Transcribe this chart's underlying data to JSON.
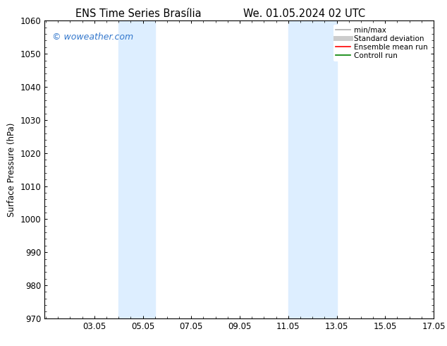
{
  "title_left": "ENS Time Series Brasília",
  "title_right": "We. 01.05.2024 02 UTC",
  "ylabel": "Surface Pressure (hPa)",
  "xlim": [
    1.0,
    17.05
  ],
  "ylim": [
    970,
    1060
  ],
  "yticks": [
    970,
    980,
    990,
    1000,
    1010,
    1020,
    1030,
    1040,
    1050,
    1060
  ],
  "xtick_labels": [
    "03.05",
    "05.05",
    "07.05",
    "09.05",
    "11.05",
    "13.05",
    "15.05",
    "17.05"
  ],
  "xtick_positions": [
    3.05,
    5.05,
    7.05,
    9.05,
    11.05,
    13.05,
    15.05,
    17.05
  ],
  "shaded_bands": [
    {
      "xmin": 4.05,
      "xmax": 5.55,
      "color": "#ddeeff"
    },
    {
      "xmin": 11.05,
      "xmax": 13.05,
      "color": "#ddeeff"
    }
  ],
  "watermark_text": "© woweather.com",
  "watermark_color": "#3377cc",
  "legend_items": [
    {
      "label": "min/max",
      "color": "#aaaaaa",
      "lw": 1.2,
      "ls": "-"
    },
    {
      "label": "Standard deviation",
      "color": "#cccccc",
      "lw": 5.0,
      "ls": "-"
    },
    {
      "label": "Ensemble mean run",
      "color": "red",
      "lw": 1.2,
      "ls": "-"
    },
    {
      "label": "Controll run",
      "color": "green",
      "lw": 1.2,
      "ls": "-"
    }
  ],
  "background_color": "#ffffff",
  "figure_width": 6.34,
  "figure_height": 4.9,
  "title_fontsize": 10.5,
  "axis_fontsize": 8.5,
  "legend_fontsize": 7.5,
  "watermark_fontsize": 9
}
